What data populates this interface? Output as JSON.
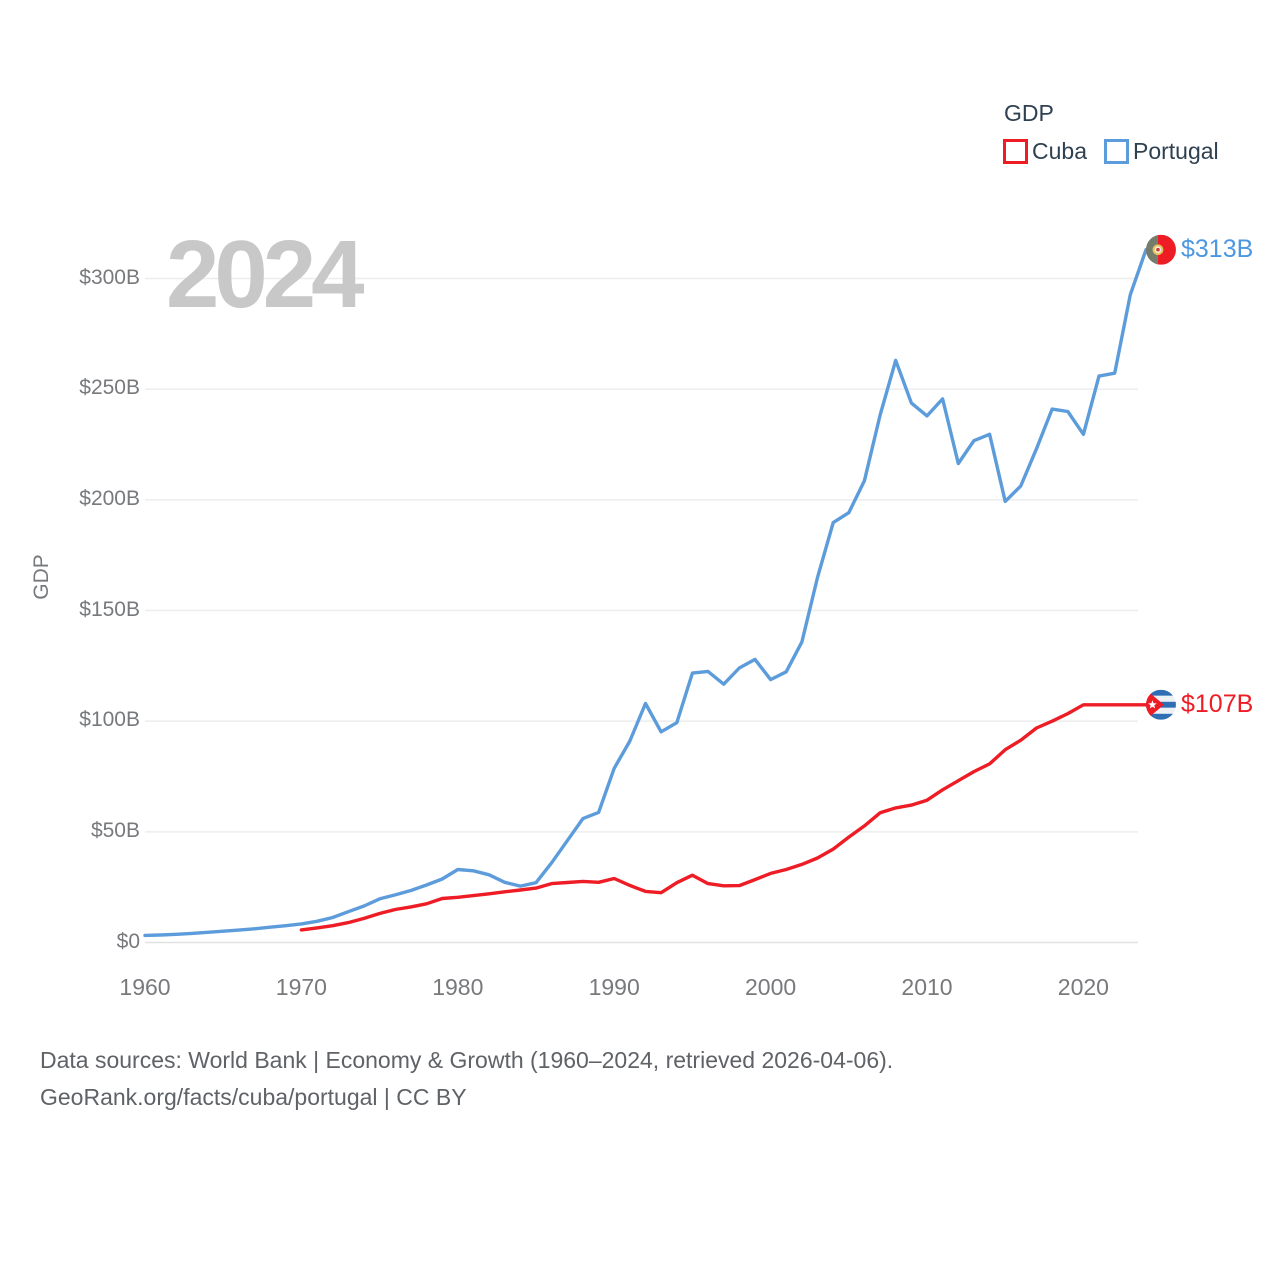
{
  "legend": {
    "title": "GDP",
    "items": [
      {
        "label": "Cuba",
        "color": "#ee1c25"
      },
      {
        "label": "Portugal",
        "color": "#5d9cdb"
      }
    ]
  },
  "watermark_year": "2024",
  "y_axis": {
    "title": "GDP",
    "ticks": [
      "$0",
      "$50B",
      "$100B",
      "$150B",
      "$200B",
      "$250B",
      "$300B"
    ]
  },
  "x_axis": {
    "ticks": [
      "1960",
      "1970",
      "1980",
      "1990",
      "2000",
      "2010",
      "2020"
    ]
  },
  "end_labels": {
    "portugal": {
      "text": "$313B",
      "color": "#4d97e0"
    },
    "cuba": {
      "text": "$107B",
      "color": "#ee1c25"
    }
  },
  "footer": {
    "line1": "Data sources: World Bank | Economy & Growth (1960–2024, retrieved 2026-04-06).",
    "line2": "GeoRank.org/facts/cuba/portugal | CC BY"
  },
  "chart_data": {
    "type": "line",
    "title": "GDP",
    "ylabel": "GDP",
    "unit": "billion USD",
    "x_range": [
      1960,
      2024
    ],
    "ylim": [
      0,
      320
    ],
    "grid": "horizontal",
    "legend_position": "top-right",
    "y_ticks_B": [
      0,
      50,
      100,
      150,
      200,
      250,
      300
    ],
    "x_ticks": [
      1960,
      1970,
      1980,
      1990,
      2000,
      2010,
      2020
    ],
    "series": [
      {
        "name": "Portugal",
        "color": "#5d9cdb",
        "start_year": 1960,
        "end_value_label": "$313B",
        "values_B": [
          3.2,
          3.4,
          3.7,
          4.1,
          4.6,
          5.1,
          5.6,
          6.2,
          6.9,
          7.6,
          8.4,
          9.6,
          11.3,
          13.9,
          16.5,
          19.7,
          21.5,
          23.5,
          26.0,
          28.7,
          33.0,
          32.4,
          30.6,
          27.2,
          25.5,
          27.0,
          36.0,
          46.0,
          56.0,
          58.8,
          78.7,
          91.0,
          108.0,
          95.2,
          99.3,
          121.7,
          122.5,
          116.7,
          124.0,
          127.9,
          118.8,
          122.3,
          135.8,
          164.9,
          189.7,
          194.2,
          208.6,
          238.3,
          263.0,
          243.7,
          237.9,
          245.6,
          216.4,
          226.7,
          229.6,
          199.3,
          206.3,
          223.1,
          241.0,
          239.9,
          229.6,
          255.9,
          257.2,
          292.7,
          313.0
        ]
      },
      {
        "name": "Cuba",
        "color": "#ee1c25",
        "start_year": 1970,
        "end_value_label": "$107B",
        "values_B": [
          5.7,
          6.6,
          7.6,
          9.0,
          10.9,
          13.1,
          14.9,
          16.1,
          17.5,
          19.9,
          20.4,
          21.2,
          22.0,
          22.9,
          23.7,
          24.6,
          26.6,
          27.1,
          27.6,
          27.2,
          28.9,
          25.8,
          23.1,
          22.5,
          27.0,
          30.4,
          26.6,
          25.6,
          25.7,
          28.4,
          31.2,
          33.0,
          35.3,
          38.2,
          42.2,
          47.6,
          52.7,
          58.6,
          60.8,
          62.1,
          64.3,
          69.0,
          73.1,
          77.2,
          80.7,
          87.1,
          91.4,
          96.9,
          100.0,
          103.4,
          107.4,
          107.4,
          107.4,
          107.4,
          107.4
        ]
      }
    ]
  }
}
